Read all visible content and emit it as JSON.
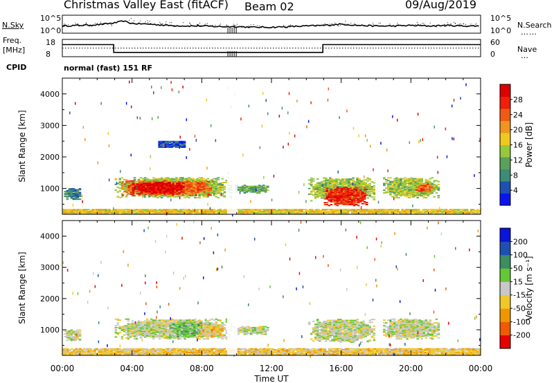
{
  "header": {
    "title": "Christmas Valley East (fitACF)",
    "beam": "Beam 02",
    "date": "09/Aug/2019",
    "mode": "normal (fast) 151 RF"
  },
  "labels": {
    "nsky": "N.Sky",
    "nsearch": "N.Search",
    "freq": "Freq.",
    "freq_unit": "[MHz]",
    "nave": "Nave",
    "cpid": "CPID",
    "xlabel": "Time UT"
  },
  "chart_data": [
    {
      "type": "line",
      "name": "noise-panel",
      "left_ticks": [
        "10^5",
        "10^0"
      ],
      "right_ticks": [
        "10^5",
        "10^0"
      ],
      "x": [
        0,
        1,
        2,
        3,
        3.5,
        4,
        5,
        6,
        7,
        8,
        9,
        10,
        11,
        12,
        13,
        14,
        15,
        16,
        17,
        18,
        19,
        20,
        21,
        22,
        23,
        24
      ],
      "nsky": [
        0.3,
        0.35,
        0.4,
        0.55,
        0.7,
        0.5,
        0.45,
        0.35,
        0.3,
        0.3,
        0.25,
        0.25,
        0.2,
        0.2,
        0.25,
        0.3,
        0.35,
        0.45,
        0.35,
        0.3,
        0.3,
        0.35,
        0.3,
        0.35,
        0.3,
        0.3
      ]
    },
    {
      "type": "line",
      "name": "freq-panel",
      "left_ticks": [
        "18",
        "8"
      ],
      "right_ticks": [
        "60",
        "0"
      ],
      "freq_steps": [
        {
          "x0": 0,
          "x1": 2.95,
          "mhz": 15
        },
        {
          "x0": 2.95,
          "x1": 14.95,
          "mhz": 10.5
        },
        {
          "x0": 14.95,
          "x1": 24,
          "mhz": 15
        }
      ],
      "nave": 30
    },
    {
      "type": "heatmap",
      "name": "power",
      "ylabel": "Slant Range [km]",
      "yticks": [
        1000,
        2000,
        3000,
        4000
      ],
      "ylim": [
        180,
        4500
      ],
      "xlim": [
        0,
        24
      ],
      "colorbar": {
        "label": "Power [dB]",
        "ticks": [
          "4",
          "8",
          "12",
          "16",
          "20",
          "24",
          "28"
        ],
        "colors": [
          "#0a14f0",
          "#1e50b4",
          "#3c8c78",
          "#5aa05a",
          "#96c83c",
          "#f0c81e",
          "#f0961e",
          "#f05a14",
          "#f01e0a",
          "#dc0000"
        ]
      },
      "regions": [
        {
          "t0": 0.1,
          "t1": 1.0,
          "r0": 650,
          "r1": 1000,
          "level": 2
        },
        {
          "t0": 3.0,
          "t1": 9.6,
          "r0": 700,
          "r1": 1350,
          "level": 4
        },
        {
          "t0": 3.4,
          "t1": 8.6,
          "r0": 780,
          "r1": 1250,
          "level": 7
        },
        {
          "t0": 4.0,
          "t1": 7.0,
          "r0": 820,
          "r1": 1200,
          "level": 9
        },
        {
          "t0": 9.8,
          "t1": 11.8,
          "r0": 850,
          "r1": 1100,
          "level": 3
        },
        {
          "t0": 14.1,
          "t1": 17.9,
          "r0": 600,
          "r1": 1350,
          "level": 4
        },
        {
          "t0": 15.0,
          "t1": 17.5,
          "r0": 450,
          "r1": 1050,
          "level": 8
        },
        {
          "t0": 18.4,
          "t1": 21.6,
          "r0": 700,
          "r1": 1350,
          "level": 4
        },
        {
          "t0": 20.3,
          "t1": 21.2,
          "r0": 880,
          "r1": 1150,
          "level": 7
        },
        {
          "t0": 5.5,
          "t1": 7.0,
          "r0": 2300,
          "r1": 2500,
          "level": 1
        },
        {
          "t0": 0.0,
          "t1": 24.0,
          "r0": 200,
          "r1": 330,
          "level": 5
        }
      ]
    },
    {
      "type": "heatmap",
      "name": "velocity",
      "ylabel": "Slant Range [km]",
      "yticks": [
        1000,
        2000,
        3000,
        4000
      ],
      "ylim": [
        180,
        4500
      ],
      "xlim": [
        0,
        24
      ],
      "xticks": [
        "00:00",
        "04:00",
        "08:00",
        "12:00",
        "16:00",
        "20:00",
        "00:00"
      ],
      "xlabel": "Time UT",
      "colorbar": {
        "label": "Velocity [m s⁻¹]",
        "ticks": [
          "-200",
          "-100",
          "-50",
          "-15",
          "15",
          "50",
          "100",
          "200"
        ],
        "colors": [
          "#e60000",
          "#f05a00",
          "#f09600",
          "#f0c828",
          "#c8c8c8",
          "#64c832",
          "#3c8c64",
          "#1e50b4",
          "#0a14dc"
        ]
      },
      "regions": [
        {
          "t0": 0.1,
          "t1": 1.0,
          "r0": 650,
          "r1": 1000,
          "level": 4
        },
        {
          "t0": 3.0,
          "t1": 9.6,
          "r0": 700,
          "r1": 1350,
          "level": 4
        },
        {
          "t0": 6.2,
          "t1": 8.2,
          "r0": 750,
          "r1": 1250,
          "level": 5
        },
        {
          "t0": 7.8,
          "t1": 9.2,
          "r0": 750,
          "r1": 1150,
          "level": 3
        },
        {
          "t0": 9.8,
          "t1": 11.8,
          "r0": 850,
          "r1": 1100,
          "level": 4
        },
        {
          "t0": 14.1,
          "t1": 17.9,
          "r0": 600,
          "r1": 1350,
          "level": 4
        },
        {
          "t0": 18.4,
          "t1": 21.6,
          "r0": 700,
          "r1": 1350,
          "level": 4
        },
        {
          "t0": 0.0,
          "t1": 24.0,
          "r0": 200,
          "r1": 400,
          "level": 3
        }
      ]
    }
  ]
}
